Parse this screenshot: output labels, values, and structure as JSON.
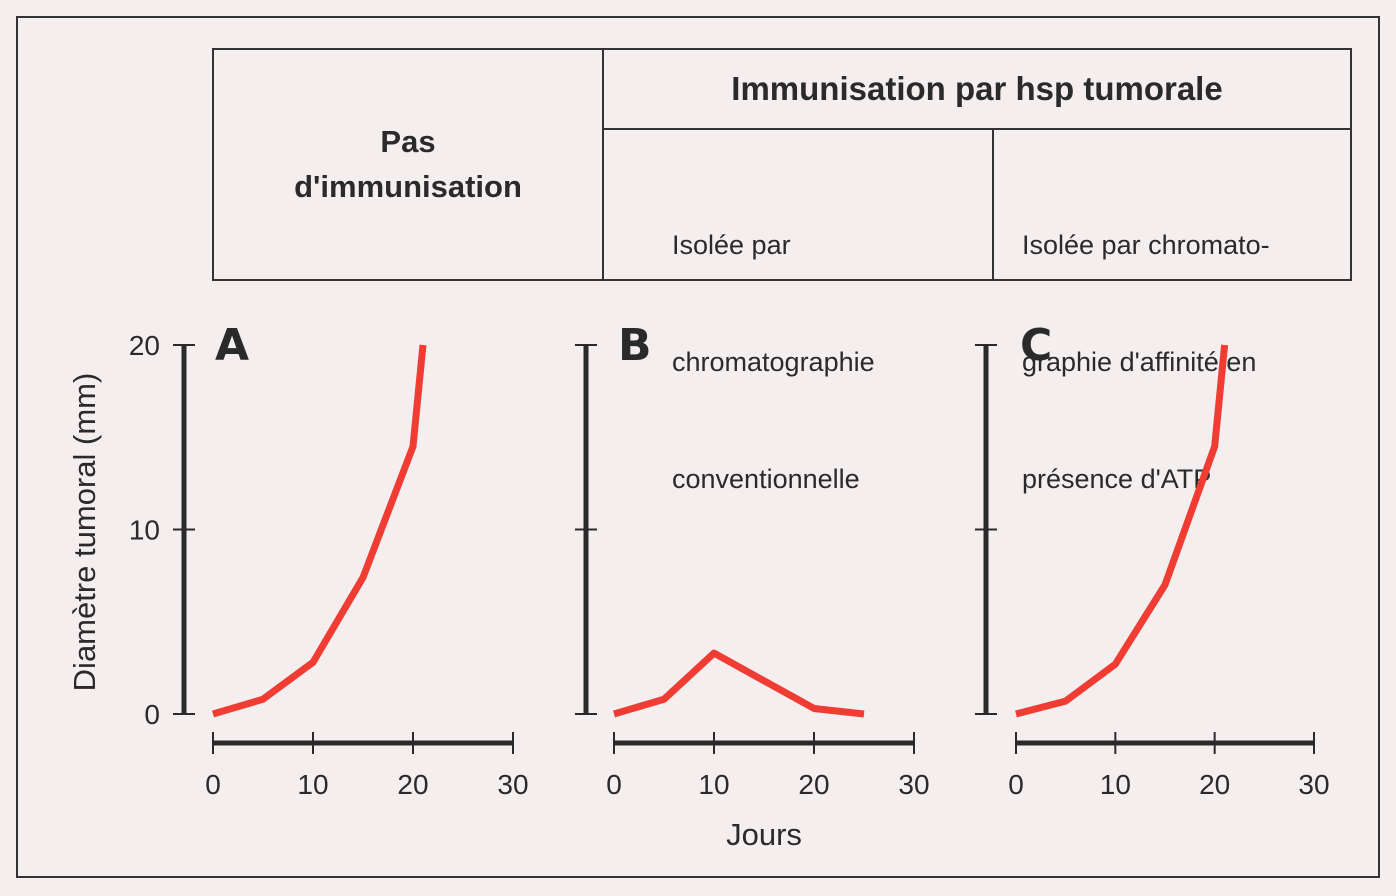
{
  "header": {
    "no_immunisation": "Pas\nd'immunisation",
    "immunisation_title": "Immunisation par hsp tumorale",
    "conventional": [
      "Isolée par",
      "chromatographie",
      "conventionnelle"
    ],
    "atp_affinity": [
      "Isolée par chromato-",
      "graphie d'affinité en",
      "présence d'ATP"
    ]
  },
  "colors": {
    "curve": "#f03c32",
    "axis": "#2a2a2a",
    "background": "#f4eeef"
  },
  "chart_data": [
    {
      "type": "line",
      "panel": "A",
      "x": [
        0,
        5,
        10,
        15,
        20,
        21
      ],
      "y": [
        0,
        0.8,
        2.8,
        7.4,
        14.5,
        20
      ],
      "xlim": [
        0,
        30
      ],
      "ylim": [
        0,
        20
      ],
      "xticks": [
        0,
        10,
        20,
        30
      ],
      "yticks": [
        0,
        10,
        20
      ],
      "ylabel": "Diamètre tumoral (mm)",
      "xlabel": "Jours"
    },
    {
      "type": "line",
      "panel": "B",
      "x": [
        0,
        5,
        10,
        20,
        25
      ],
      "y": [
        0,
        0.8,
        3.3,
        0.3,
        0
      ],
      "xlim": [
        0,
        30
      ],
      "ylim": [
        0,
        20
      ],
      "xticks": [
        0,
        10,
        20,
        30
      ],
      "yticks": [
        0,
        10,
        20
      ],
      "ylabel": "",
      "xlabel": "Jours"
    },
    {
      "type": "line",
      "panel": "C",
      "x": [
        0,
        5,
        10,
        15,
        20,
        21
      ],
      "y": [
        0,
        0.7,
        2.7,
        7.0,
        14.5,
        20
      ],
      "xlim": [
        0,
        30
      ],
      "ylim": [
        0,
        20
      ],
      "xticks": [
        0,
        10,
        20,
        30
      ],
      "yticks": [
        0,
        10,
        20
      ],
      "ylabel": "",
      "xlabel": "Jours"
    }
  ]
}
